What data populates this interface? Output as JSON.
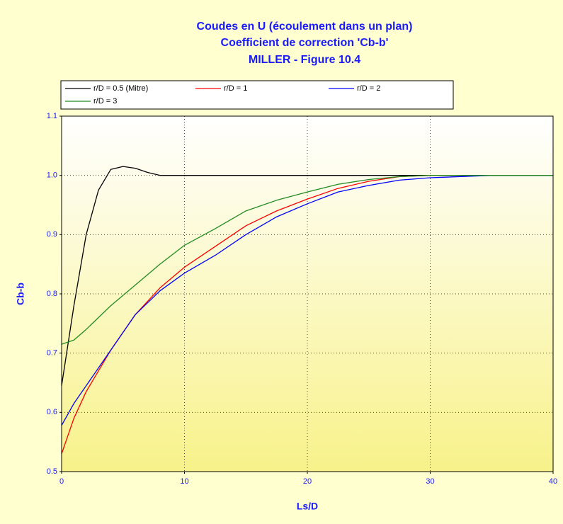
{
  "chart_data": {
    "type": "line",
    "title": "Coudes en U (écoulement dans un plan)",
    "subtitle": "Coefficient de correction 'Cb-b'",
    "subtitle2": "MILLER - Figure 10.4",
    "xlabel": "Ls/D",
    "ylabel": "Cb-b",
    "xlim": [
      0,
      40
    ],
    "xticks": [
      0,
      10,
      20,
      30,
      40
    ],
    "ylim": [
      0.5,
      1.1
    ],
    "yticks": [
      0.5,
      0.6,
      0.7,
      0.8,
      0.9,
      {
        "value": 1,
        "label": "1.0"
      },
      1.1
    ],
    "grid": true,
    "series": [
      {
        "name": "r/D = 0.5 (Mitre)",
        "color": "#000000",
        "x": [
          0,
          1,
          2,
          3,
          4,
          5,
          6,
          7,
          8,
          9,
          10,
          15,
          20,
          30,
          40
        ],
        "values": [
          0.645,
          0.78,
          0.9,
          0.975,
          1.01,
          1.015,
          1.012,
          1.005,
          1.0,
          1.0,
          1.0,
          1.0,
          1.0,
          1.0,
          1.0
        ]
      },
      {
        "name": "r/D = 1",
        "color": "#ff0000",
        "x": [
          0,
          1,
          2,
          4,
          6,
          8,
          10,
          12.5,
          15,
          17.5,
          20,
          22.5,
          25,
          27.5,
          30,
          35,
          40
        ],
        "values": [
          0.53,
          0.59,
          0.635,
          0.705,
          0.765,
          0.81,
          0.845,
          0.88,
          0.915,
          0.94,
          0.96,
          0.978,
          0.99,
          0.998,
          1.0,
          1.0,
          1.0
        ]
      },
      {
        "name": "r/D = 2",
        "color": "#0000ff",
        "x": [
          0,
          1,
          2,
          4,
          6,
          8,
          10,
          12.5,
          15,
          17.5,
          20,
          22.5,
          25,
          27.5,
          30,
          35,
          40
        ],
        "values": [
          0.578,
          0.615,
          0.645,
          0.705,
          0.765,
          0.805,
          0.835,
          0.865,
          0.9,
          0.93,
          0.952,
          0.972,
          0.983,
          0.992,
          0.996,
          1.0,
          1.0
        ]
      },
      {
        "name": "r/D = 3",
        "color": "#228b22",
        "x": [
          0,
          1,
          2,
          4,
          6,
          8,
          10,
          12.5,
          15,
          17.5,
          20,
          22.5,
          25,
          27.5,
          30,
          35,
          40
        ],
        "values": [
          0.715,
          0.722,
          0.74,
          0.78,
          0.815,
          0.85,
          0.882,
          0.91,
          0.94,
          0.958,
          0.972,
          0.985,
          0.993,
          0.998,
          1.0,
          1.0,
          1.0
        ]
      }
    ]
  }
}
